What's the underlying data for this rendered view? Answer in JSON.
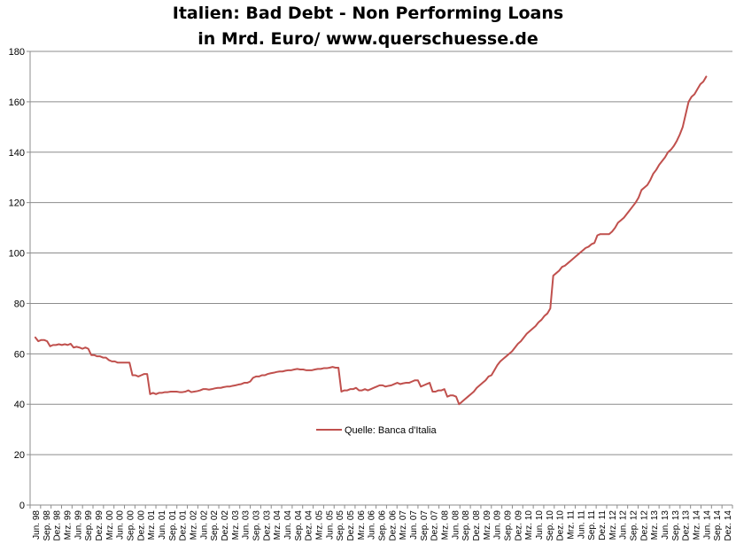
{
  "chart_data": {
    "type": "line",
    "title": "Italien: Bad Debt - Non Performing Loans",
    "subtitle": "in Mrd. Euro/ www.querschuesse.de",
    "ylim": [
      0,
      180
    ],
    "yticks": [
      "0",
      "20",
      "40",
      "60",
      "80",
      "100",
      "120",
      "140",
      "160",
      "180"
    ],
    "grid": true,
    "legend_position": "center",
    "x_tick_labels": [
      "Jun. 98",
      "Sep. 98",
      "Dez. 98",
      "Mrz. 99",
      "Jun. 99",
      "Sep. 99",
      "Dez. 99",
      "Mrz. 00",
      "Jun. 00",
      "Sep. 00",
      "Dez. 00",
      "Mrz. 01",
      "Jun. 01",
      "Sep. 01",
      "Dez. 01",
      "Mrz. 02",
      "Jun. 02",
      "Sep. 02",
      "Dez. 02",
      "Mrz. 03",
      "Jun. 03",
      "Sep. 03",
      "Dez. 03",
      "Mrz. 04",
      "Jun. 04",
      "Sep. 04",
      "Dez. 04",
      "Mrz. 05",
      "Jun. 05",
      "Sep. 05",
      "Dez. 05",
      "Mrz. 06",
      "Jun. 06",
      "Sep. 06",
      "Dez. 06",
      "Mrz. 07",
      "Jun. 07",
      "Sep. 07",
      "Dez. 07",
      "Mrz. 08",
      "Jun. 08",
      "Sep. 08",
      "Dez. 08",
      "Mrz. 09",
      "Jun. 09",
      "Sep. 09",
      "Dez. 09",
      "Mrz. 10",
      "Jun. 10",
      "Sep. 10",
      "Dez. 10",
      "Mrz. 11",
      "Jun. 11",
      "Sep. 11",
      "Dez. 11",
      "Mrz. 12",
      "Jun. 12",
      "Sep. 12",
      "Dez. 12",
      "Mrz. 13",
      "Jun. 13",
      "Sep. 13",
      "Dez. 13",
      "Mrz. 14",
      "Jun. 14",
      "Sep. 14",
      "Dez. 14"
    ],
    "series": [
      {
        "name": "Quelle: Banca d'Italia",
        "color": "#c0504d",
        "x_start": "Jun. 98",
        "x_end": "Jun. 14",
        "values": [
          66.5,
          65,
          65.5,
          65.5,
          65,
          63,
          63.5,
          63.5,
          63.8,
          63.5,
          63.8,
          63.5,
          64,
          62.5,
          62.8,
          62.5,
          62,
          62.5,
          62,
          59.5,
          59.5,
          59,
          59,
          58.5,
          58.5,
          57.5,
          57,
          57,
          56.5,
          56.5,
          56.5,
          56.5,
          56.5,
          51.5,
          51.5,
          51,
          51.5,
          52,
          52,
          44,
          44.5,
          44,
          44.5,
          44.5,
          44.8,
          44.8,
          45,
          45,
          45,
          44.8,
          44.8,
          45,
          45.5,
          44.8,
          45,
          45.2,
          45.5,
          46,
          46,
          45.8,
          46,
          46.3,
          46.5,
          46.5,
          46.8,
          47,
          47,
          47.3,
          47.5,
          47.8,
          48,
          48.5,
          48.5,
          49,
          50.5,
          51,
          51,
          51.5,
          51.5,
          52,
          52.3,
          52.5,
          52.8,
          53,
          53,
          53.3,
          53.5,
          53.5,
          53.8,
          54,
          53.8,
          53.8,
          53.5,
          53.5,
          53.5,
          53.8,
          54,
          54,
          54.3,
          54.3,
          54.5,
          54.8,
          54.5,
          54.5,
          45,
          45.5,
          45.5,
          46,
          46,
          46.5,
          45.5,
          45.5,
          46,
          45.5,
          46,
          46.5,
          47,
          47.5,
          47.5,
          47,
          47.3,
          47.5,
          48,
          48.5,
          48,
          48.3,
          48.5,
          48.5,
          49,
          49.5,
          49.5,
          47,
          47.5,
          48,
          48.5,
          45,
          45,
          45.5,
          45.5,
          46,
          43,
          43.5,
          43.5,
          43,
          40,
          41,
          42,
          43,
          44,
          45,
          46.5,
          47.5,
          48.5,
          49.5,
          51,
          51.5,
          53.5,
          55.5,
          57,
          58,
          59,
          60,
          61,
          62.5,
          64,
          65,
          66.5,
          68,
          69,
          70,
          71,
          72.5,
          73.5,
          75,
          76,
          78,
          91,
          92,
          93,
          94.5,
          95,
          96,
          97,
          98,
          99,
          100,
          101,
          102,
          102.5,
          103.5,
          104,
          107,
          107.5,
          107.5,
          107.5,
          107.5,
          108.5,
          110,
          112,
          113,
          114,
          115.5,
          117,
          118.5,
          120,
          122,
          125,
          126,
          127,
          129,
          131.5,
          133,
          135,
          136.5,
          138,
          140,
          141,
          142.5,
          144.5,
          147,
          150,
          155,
          160,
          162,
          163,
          165,
          167,
          168,
          170
        ]
      }
    ]
  }
}
